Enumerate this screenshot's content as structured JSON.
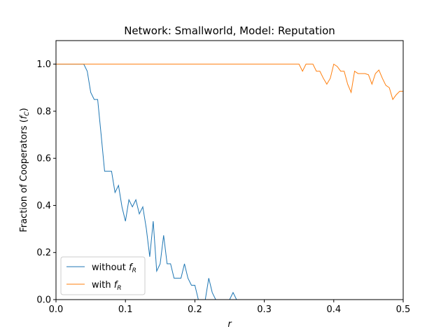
{
  "chart_data": {
    "type": "line",
    "title": "Network: Smallworld, Model: Reputation",
    "xlabel": "r",
    "ylabel": "Fraction of Cooperators (",
    "ylabel_var": "f",
    "ylabel_sub": "C",
    "ylabel_close": ")",
    "xlim": [
      0,
      0.5
    ],
    "ylim": [
      0,
      1.1
    ],
    "xticks": [
      "0.0",
      "0.1",
      "0.2",
      "0.3",
      "0.4",
      "0.5"
    ],
    "yticks": [
      "0.0",
      "0.2",
      "0.4",
      "0.6",
      "0.8",
      "1.0"
    ],
    "grid": false,
    "legend_position": "lower-left",
    "series": [
      {
        "name": "without ",
        "name_var": "f",
        "name_sub": "R",
        "color": "#1f77b4",
        "x": [
          0,
          0.005,
          0.01,
          0.015,
          0.02,
          0.025,
          0.03,
          0.035,
          0.04,
          0.045,
          0.05,
          0.055,
          0.06,
          0.065,
          0.07,
          0.075,
          0.08,
          0.085,
          0.09,
          0.095,
          0.1,
          0.105,
          0.11,
          0.115,
          0.12,
          0.125,
          0.13,
          0.135,
          0.14,
          0.145,
          0.15,
          0.155,
          0.16,
          0.165,
          0.17,
          0.175,
          0.18,
          0.185,
          0.19,
          0.195,
          0.2,
          0.205,
          0.21,
          0.215,
          0.22,
          0.225,
          0.23,
          0.235,
          0.24,
          0.245,
          0.25,
          0.255,
          0.26,
          0.265,
          0.27,
          0.3,
          0.35,
          0.4,
          0.45,
          0.5
        ],
        "y": [
          1.0,
          1.0,
          1.0,
          1.0,
          1.0,
          1.0,
          1.0,
          1.0,
          1.0,
          0.97,
          0.88,
          0.85,
          0.85,
          0.7,
          0.545,
          0.545,
          0.545,
          0.455,
          0.485,
          0.394,
          0.333,
          0.424,
          0.394,
          0.424,
          0.364,
          0.394,
          0.303,
          0.182,
          0.333,
          0.121,
          0.152,
          0.273,
          0.152,
          0.152,
          0.091,
          0.091,
          0.091,
          0.152,
          0.091,
          0.061,
          0.061,
          0.0,
          0.0,
          0.0,
          0.091,
          0.03,
          0.0,
          0.0,
          0.0,
          0.0,
          0.0,
          0.03,
          0.0,
          0.0,
          0.0,
          0.0,
          0.0,
          0.0,
          0.0,
          0.0
        ]
      },
      {
        "name": "with ",
        "name_var": "f",
        "name_sub": "R",
        "color": "#ff7f0e",
        "x": [
          0,
          0.05,
          0.1,
          0.15,
          0.2,
          0.25,
          0.3,
          0.35,
          0.355,
          0.36,
          0.365,
          0.37,
          0.375,
          0.38,
          0.385,
          0.39,
          0.395,
          0.4,
          0.405,
          0.41,
          0.415,
          0.42,
          0.425,
          0.43,
          0.435,
          0.44,
          0.445,
          0.45,
          0.455,
          0.46,
          0.465,
          0.47,
          0.475,
          0.48,
          0.485,
          0.49,
          0.495,
          0.5
        ],
        "y": [
          1.0,
          1.0,
          1.0,
          1.0,
          1.0,
          1.0,
          1.0,
          1.0,
          0.97,
          1.0,
          1.0,
          1.0,
          0.97,
          0.97,
          0.94,
          0.915,
          0.94,
          1.0,
          0.99,
          0.97,
          0.97,
          0.915,
          0.88,
          0.97,
          0.96,
          0.96,
          0.96,
          0.955,
          0.915,
          0.96,
          0.975,
          0.94,
          0.91,
          0.9,
          0.85,
          0.87,
          0.885,
          0.885
        ]
      }
    ]
  }
}
